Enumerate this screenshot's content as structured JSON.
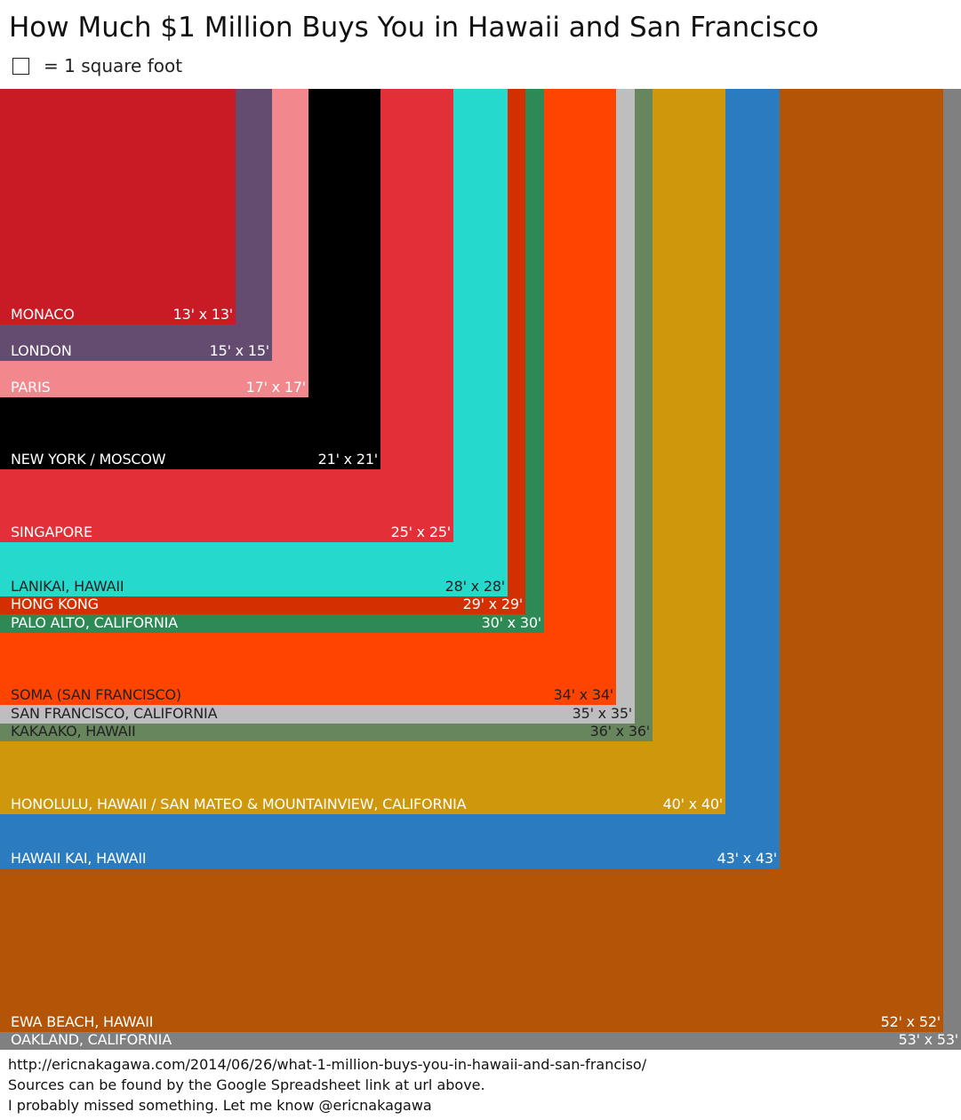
{
  "title": "How Much $1 Million Buys You in Hawaii and San Francisco",
  "legend": {
    "label": "= 1 square foot"
  },
  "footer": {
    "url": "http://ericnakagawa.com/2014/06/26/what-1-million-buys-you-in-hawaii-and-san-franciso/",
    "sources": "Sources can be found by the Google Spreadsheet link at url above.",
    "note": "I probably missed something. Let me know @ericnakagawa"
  },
  "chart_data": {
    "type": "nested-squares",
    "unit": "feet",
    "series": [
      {
        "name": "OAKLAND, CALIFORNIA",
        "side": 53,
        "dims": "53' x 53'",
        "color": "#808080",
        "text_color": "#ffffff"
      },
      {
        "name": "EWA BEACH, HAWAII",
        "side": 52,
        "dims": "52' x 52'",
        "color": "#B35406",
        "text_color": "#ffffff"
      },
      {
        "name": "HAWAII KAI, HAWAII",
        "side": 43,
        "dims": "43' x 43'",
        "color": "#2A7BC0",
        "text_color": "#ffffff"
      },
      {
        "name": "HONOLULU, HAWAII / SAN MATEO & MOUNTAINVIEW, CALIFORNIA",
        "side": 40,
        "dims": "40' x 40'",
        "color": "#CE970C",
        "text_color": "#ffffff"
      },
      {
        "name": "KAKAAKO, HAWAII",
        "side": 36,
        "dims": "36' x 36'",
        "color": "#67865E",
        "text_color": "#222222"
      },
      {
        "name": "SAN FRANCISCO, CALIFORNIA",
        "side": 35,
        "dims": "35' x 35'",
        "color": "#BEBEBE",
        "text_color": "#222222"
      },
      {
        "name": "SOMA (SAN FRANCISCO)",
        "side": 34,
        "dims": "34' x 34'",
        "color": "#FF4300",
        "text_color": "#222222"
      },
      {
        "name": "PALO ALTO, CALIFORNIA",
        "side": 30,
        "dims": "30' x 30'",
        "color": "#2D8955",
        "text_color": "#ffffff"
      },
      {
        "name": "HONG KONG",
        "side": 29,
        "dims": "29' x 29'",
        "color": "#D42F00",
        "text_color": "#ffffff"
      },
      {
        "name": "LANIKAI, HAWAII",
        "side": 28,
        "dims": "28' x 28'",
        "color": "#25D9CC",
        "text_color": "#222222"
      },
      {
        "name": "SINGAPORE",
        "side": 25,
        "dims": "25' x 25'",
        "color": "#E33038",
        "text_color": "#ffffff"
      },
      {
        "name": "NEW YORK / MOSCOW",
        "side": 21,
        "dims": "21' x 21'",
        "color": "#000000",
        "text_color": "#ffffff"
      },
      {
        "name": "PARIS",
        "side": 17,
        "dims": "17' x 17'",
        "color": "#F3878E",
        "text_color": "#ffffff"
      },
      {
        "name": "LONDON",
        "side": 15,
        "dims": "15' x 15'",
        "color": "#644B70",
        "text_color": "#ffffff"
      },
      {
        "name": "MONACO",
        "side": 13,
        "dims": "13' x 13'",
        "color": "#C91B25",
        "text_color": "#ffffff"
      }
    ]
  }
}
